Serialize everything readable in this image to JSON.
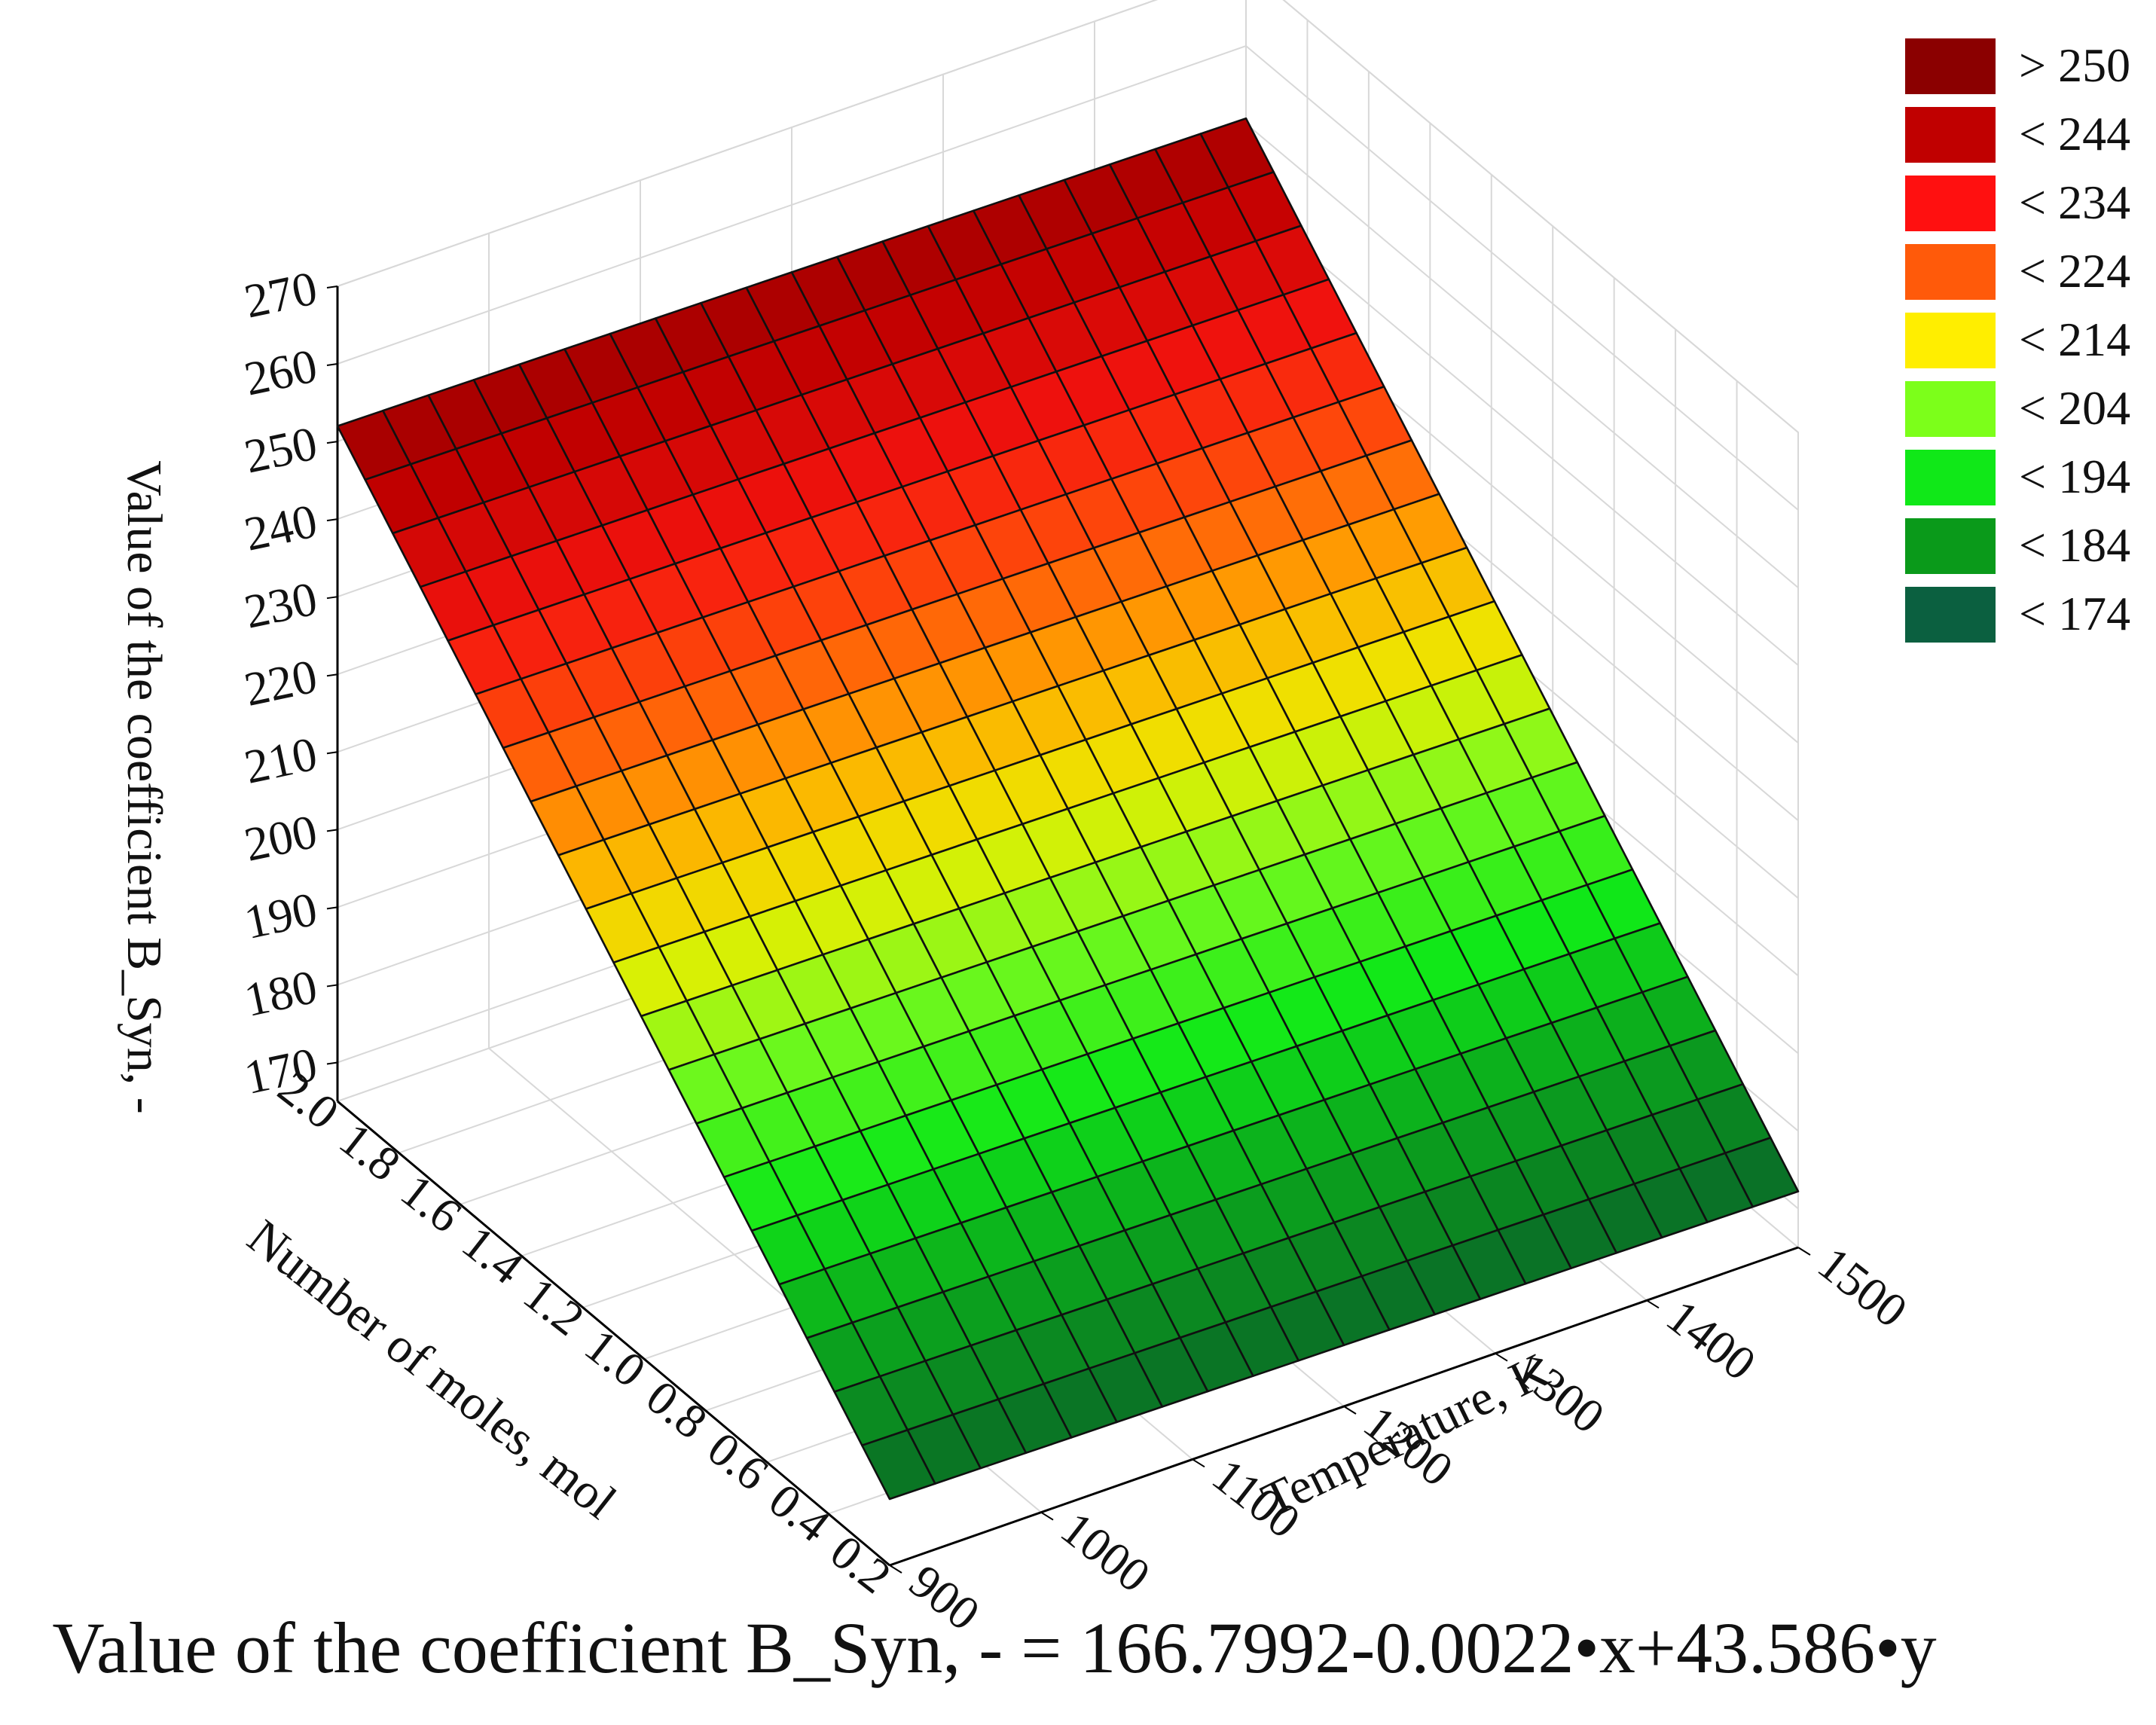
{
  "chart_data": {
    "type": "surface3d",
    "equation": "Value of the coefficient B_Syn, - = 166.7992-0.0022•x+43.586•y",
    "coefficients": {
      "intercept": 166.7992,
      "x": -0.0022,
      "y": 43.586
    },
    "zlabel": "Value of the coefficient B_Syn, -",
    "xlabel": "Temperature, K",
    "ylabel": "Number of moles, mol",
    "x_ticks": [
      "900",
      "1000",
      "1100",
      "1200",
      "1300",
      "1400",
      "1500"
    ],
    "y_ticks": [
      "0.2",
      "0.4",
      "0.6",
      "0.8",
      "1.0",
      "1.2",
      "1.4",
      "1.6",
      "1.8",
      "2.0"
    ],
    "z_ticks": [
      "170",
      "180",
      "190",
      "200",
      "210",
      "220",
      "230",
      "240",
      "250",
      "260",
      "270"
    ],
    "xlim": [
      900,
      1500
    ],
    "ylim": [
      0.2,
      2.0
    ],
    "zlim": [
      165,
      270
    ],
    "grid_divisions": {
      "x": 20,
      "y": 20
    },
    "legend": {
      "position": "top-right",
      "entries": [
        {
          "label": "> 250",
          "color": "#8b0000"
        },
        {
          "label": "< 244",
          "color": "#c00000"
        },
        {
          "label": "< 234",
          "color": "#ff1010"
        },
        {
          "label": "< 224",
          "color": "#ff5a0a"
        },
        {
          "label": "< 214",
          "color": "#ffee00"
        },
        {
          "label": "< 204",
          "color": "#7cff1a"
        },
        {
          "label": "< 194",
          "color": "#10e818"
        },
        {
          "label": "< 184",
          "color": "#0a9a1a"
        },
        {
          "label": "< 174",
          "color": "#0b6040"
        }
      ]
    }
  }
}
